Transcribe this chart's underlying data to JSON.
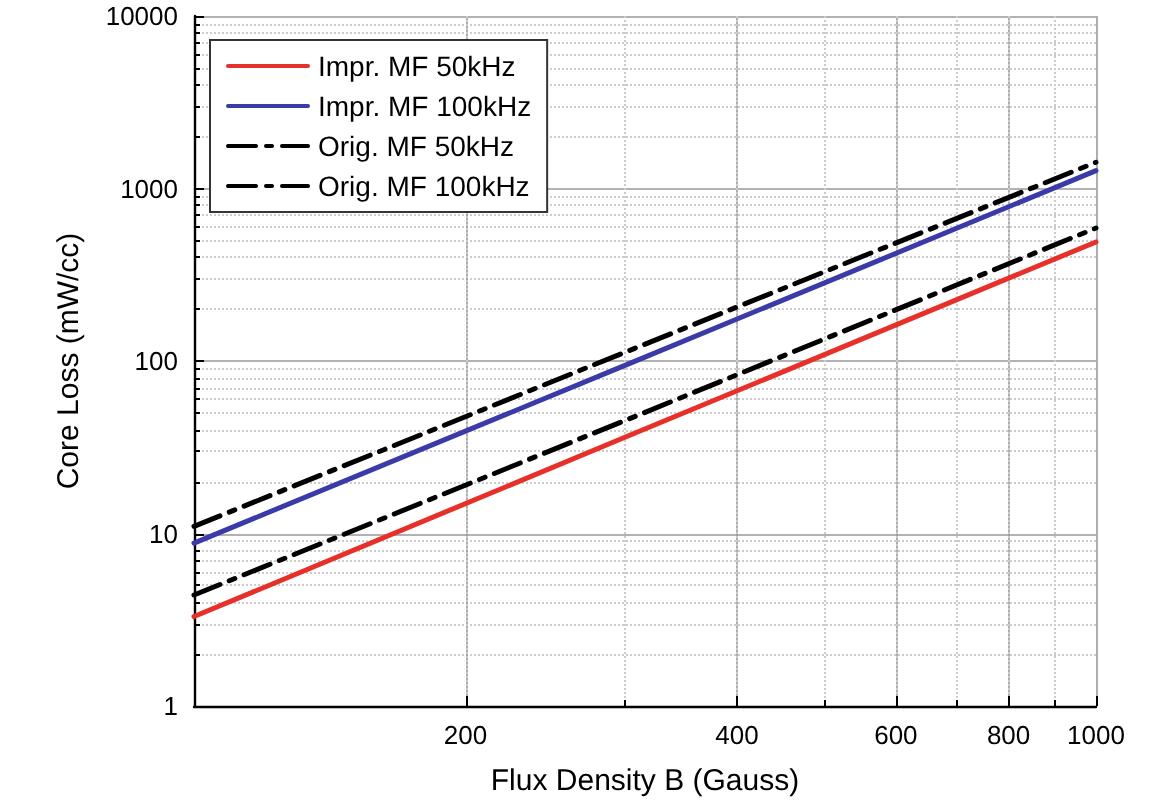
{
  "chart_data": {
    "type": "line",
    "xlabel": "Flux Density B (Gauss)",
    "ylabel": "Core Loss (mW/cc)",
    "log": "xy",
    "xlim": [
      100,
      1000
    ],
    "xticks": [
      200,
      400,
      600,
      800,
      1000
    ],
    "ylim": [
      1,
      10000
    ],
    "yticks": [
      1,
      10,
      100,
      1000,
      10000
    ],
    "grid": true,
    "legend": "top left",
    "marker": "none",
    "series": [
      {
        "name": "Impr. MF 50kHz",
        "color": "#e8302a",
        "x": [
          100,
          300,
          1000
        ],
        "values": [
          3.3,
          36,
          490
        ],
        "line_style": "solid"
      },
      {
        "name": "Impr. MF 100kHz",
        "color": "#3a3aa8",
        "x": [
          100,
          300,
          1000
        ],
        "values": [
          8.8,
          94,
          1270
        ],
        "line_style": "solid"
      },
      {
        "name": "Orig. MF 50kHz",
        "color": "#000000",
        "x": [
          100,
          300,
          1000
        ],
        "values": [
          4.4,
          45,
          590
        ],
        "line_style": "dashdot"
      },
      {
        "name": "Orig. MF 100kHz",
        "color": "#000000",
        "x": [
          100,
          300,
          1000
        ],
        "values": [
          11,
          112,
          1420
        ],
        "line_style": "dashdot"
      }
    ]
  }
}
